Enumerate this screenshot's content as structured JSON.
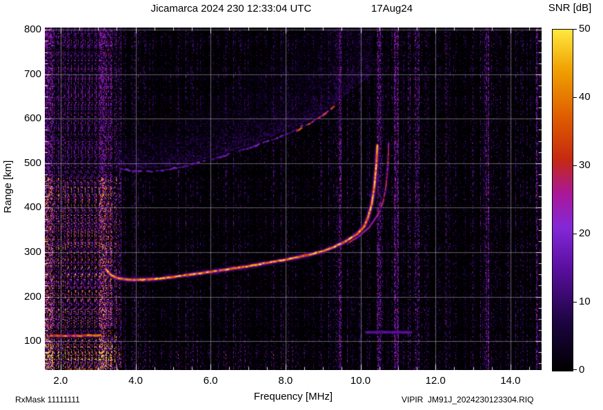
{
  "footer": {
    "rxmask": "RxMask 11111111",
    "filename": "VIPIR  JM91J_2024230123304.RIQ"
  },
  "chart_data": {
    "type": "heatmap",
    "title": "Jicamarca 2024 230 12:33:04 UTC",
    "date_label": "17Aug24",
    "xlabel": "Frequency [MHz]",
    "ylabel": "Range [km]",
    "colorbar_label": "SNR [dB]",
    "xlim": [
      1.58,
      14.83
    ],
    "ylim": [
      35,
      805
    ],
    "colorbar_range": [
      0,
      50
    ],
    "x_ticks": [
      {
        "v": 2.0,
        "label": "2.0"
      },
      {
        "v": 4.0,
        "label": "4.0"
      },
      {
        "v": 6.0,
        "label": "6.0"
      },
      {
        "v": 8.0,
        "label": "8.0"
      },
      {
        "v": 10.0,
        "label": "10.0"
      },
      {
        "v": 12.0,
        "label": "12.0"
      },
      {
        "v": 14.0,
        "label": "14.0"
      }
    ],
    "y_ticks": [
      {
        "v": 100,
        "label": "100"
      },
      {
        "v": 200,
        "label": "200"
      },
      {
        "v": 300,
        "label": "300"
      },
      {
        "v": 400,
        "label": "400"
      },
      {
        "v": 500,
        "label": "500"
      },
      {
        "v": 600,
        "label": "600"
      },
      {
        "v": 700,
        "label": "700"
      },
      {
        "v": 800,
        "label": "800"
      }
    ],
    "colorbar_ticks": [
      {
        "v": 0,
        "label": "0"
      },
      {
        "v": 10,
        "label": "10"
      },
      {
        "v": 20,
        "label": "20"
      },
      {
        "v": 30,
        "label": "30"
      },
      {
        "v": 40,
        "label": "40"
      },
      {
        "v": 50,
        "label": "50"
      }
    ],
    "colormap_stops": [
      [
        0.0,
        "#000000"
      ],
      [
        0.14,
        "#1c0440"
      ],
      [
        0.3,
        "#5a0fa0"
      ],
      [
        0.42,
        "#8428d8"
      ],
      [
        0.52,
        "#aa1898"
      ],
      [
        0.62,
        "#c62a10"
      ],
      [
        0.75,
        "#e06000"
      ],
      [
        0.88,
        "#f0a000"
      ],
      [
        1.0,
        "#ffe840"
      ]
    ],
    "grid_color": "rgba(255,255,255,0.38)",
    "series": [
      {
        "name": "F-layer O-mode trace",
        "points": [
          [
            3.2,
            262
          ],
          [
            3.35,
            248
          ],
          [
            3.5,
            242
          ],
          [
            3.8,
            238
          ],
          [
            4.2,
            238
          ],
          [
            4.6,
            240
          ],
          [
            5.0,
            244
          ],
          [
            5.5,
            250
          ],
          [
            6.0,
            256
          ],
          [
            6.5,
            262
          ],
          [
            7.0,
            268
          ],
          [
            7.5,
            276
          ],
          [
            8.0,
            283
          ],
          [
            8.5,
            292
          ],
          [
            9.0,
            302
          ],
          [
            9.3,
            312
          ],
          [
            9.6,
            324
          ],
          [
            9.9,
            340
          ],
          [
            10.1,
            358
          ],
          [
            10.2,
            378
          ],
          [
            10.3,
            408
          ],
          [
            10.37,
            448
          ],
          [
            10.42,
            495
          ],
          [
            10.45,
            540
          ]
        ],
        "passes": [
          [
            8,
            10,
            14,
            0.3,
            0.05,
            2
          ],
          [
            4,
            22,
            30,
            0.85,
            0.05,
            1
          ],
          [
            2.2,
            34,
            50,
            1,
            0.08,
            1
          ]
        ]
      },
      {
        "name": "F-layer X-mode trace",
        "points": [
          [
            9.7,
            322
          ],
          [
            10.0,
            338
          ],
          [
            10.25,
            358
          ],
          [
            10.45,
            382
          ],
          [
            10.6,
            412
          ],
          [
            10.68,
            448
          ],
          [
            10.73,
            495
          ],
          [
            10.75,
            545
          ]
        ],
        "passes": [
          [
            5,
            10,
            13,
            0.25,
            0.15,
            2
          ],
          [
            1.8,
            22,
            36,
            0.9,
            0.25,
            1
          ]
        ]
      },
      {
        "name": "second-hop trace",
        "points": [
          [
            3.6,
            488
          ],
          [
            4.0,
            482
          ],
          [
            4.5,
            482
          ],
          [
            5.0,
            488
          ],
          [
            5.5,
            497
          ],
          [
            6.0,
            508
          ],
          [
            6.5,
            520
          ],
          [
            7.0,
            533
          ],
          [
            7.5,
            548
          ],
          [
            8.0,
            565
          ],
          [
            8.5,
            585
          ],
          [
            9.0,
            608
          ],
          [
            9.3,
            628
          ]
        ],
        "passes": [
          [
            2.5,
            12,
            22,
            0.8,
            0.45,
            2
          ]
        ]
      },
      {
        "name": "second-hop bright segment",
        "points": [
          [
            8.3,
            572
          ],
          [
            8.7,
            592
          ],
          [
            9.0,
            608
          ],
          [
            9.3,
            628
          ]
        ],
        "passes": [
          [
            2.5,
            24,
            38,
            0.9,
            0.5,
            1
          ]
        ]
      },
      {
        "name": "E-layer echo",
        "points": [
          [
            1.75,
            112
          ],
          [
            2.4,
            112
          ],
          [
            3.05,
            113
          ]
        ],
        "passes": [
          [
            6,
            10,
            14,
            0.4,
            0,
            1
          ],
          [
            3,
            26,
            44,
            1,
            0.15,
            1
          ]
        ]
      },
      {
        "name": "sporadic-E bar",
        "points": [
          [
            10.15,
            120
          ],
          [
            11.35,
            120
          ]
        ],
        "passes": [
          [
            4,
            13,
            16,
            0.85,
            0,
            0
          ]
        ]
      }
    ],
    "diffuse": {
      "along": "second-hop trace",
      "f_start": 3.5,
      "f_end": 10.3,
      "spread_base": 55,
      "spread_growth": 30
    },
    "vertical_streaks": [
      {
        "f": 10.38,
        "r0": 555,
        "r1": 735
      },
      {
        "f": 10.5,
        "r0": 575,
        "r1": 760
      },
      {
        "f": 10.55,
        "r0": 430,
        "r1": 690
      },
      {
        "f": 10.62,
        "r0": 560,
        "r1": 720
      }
    ],
    "noise": {
      "low_freq_boost": 2.4,
      "bright_columns": [
        1.62,
        1.72,
        3.1,
        9.42,
        10.5,
        10.95,
        11.5,
        13.35,
        14.72
      ]
    }
  }
}
